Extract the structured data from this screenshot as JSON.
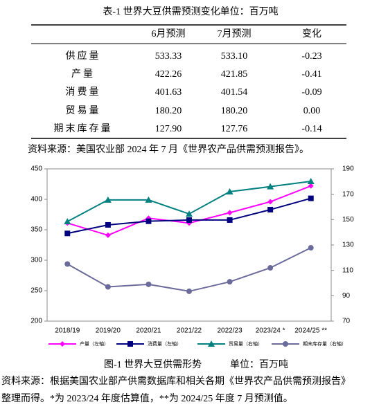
{
  "table": {
    "title": "表-1 世界大豆供需预测变化单位：百万吨",
    "columns": [
      "6月预测",
      "7月预测",
      "变化"
    ],
    "rows": [
      [
        "供应量",
        "533.33",
        "533.10",
        "-0.23"
      ],
      [
        "产量",
        "422.26",
        "421.85",
        "-0.41"
      ],
      [
        "消费量",
        "401.63",
        "401.54",
        "-0.09"
      ],
      [
        "贸易量",
        "180.20",
        "180.20",
        "0.00"
      ],
      [
        "期末库存量",
        "127.90",
        "127.76",
        "-0.14"
      ]
    ]
  },
  "source_1": "资料来源：美国农业部 2024 年 7 月《世界农产品供需预测报告》。",
  "chart_data": {
    "type": "line",
    "categories": [
      "2018/19",
      "2019/20",
      "2020/21",
      "2021/22",
      "2022/23",
      "2023/24 *",
      "2024/25 **"
    ],
    "series": [
      {
        "name": "产量（左轴）",
        "color": "#ff00ff",
        "marker": "diamond",
        "axis": "y",
        "values": [
          361,
          341,
          369,
          361,
          378,
          396,
          422
        ]
      },
      {
        "name": "消费量（左轴）",
        "color": "#000080",
        "marker": "square",
        "axis": "y",
        "values": [
          344,
          358,
          364,
          366,
          366,
          383,
          401.6
        ]
      },
      {
        "name": "贸易量（右轴）",
        "color": "#008080",
        "marker": "triangle",
        "axis": "y2",
        "values": [
          148.5,
          165.5,
          165.5,
          154.5,
          172,
          176,
          180.2
        ]
      },
      {
        "name": "期末库存量（右轴）",
        "color": "#6b6b9b",
        "marker": "circle",
        "axis": "y2",
        "values": [
          115,
          97,
          99,
          93.5,
          101,
          112,
          127.8
        ]
      }
    ],
    "ylim": [
      200,
      450
    ],
    "yticks": [
      200,
      250,
      300,
      350,
      400,
      450
    ],
    "y2lim": [
      70,
      190
    ],
    "y2ticks": [
      70,
      90,
      110,
      130,
      150,
      170,
      190
    ],
    "legend": "bottom"
  },
  "caption": {
    "title": "图-1  世界大豆供需形势",
    "unit": "单位：百万吨"
  },
  "source_2": [
    "资料来源：根据美国农业部产供需数据库和相关各期《世界农产品供需预测报告》",
    "整理而得。*为 2023/24 年度估算值，**为 2024/25 年度 7 月预测值。"
  ]
}
